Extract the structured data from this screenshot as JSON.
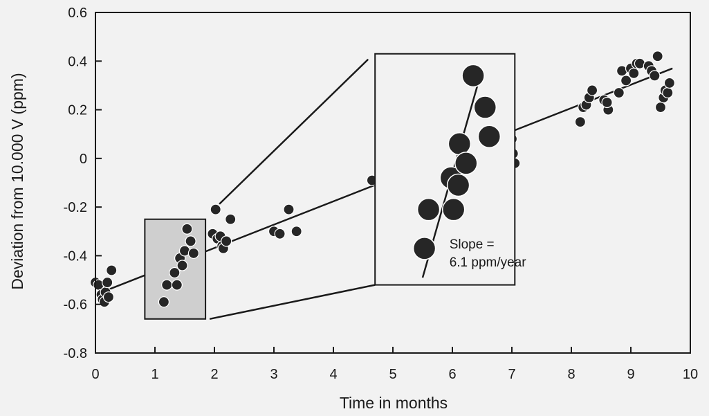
{
  "chart_data": {
    "type": "scatter",
    "xlabel": "Time in months",
    "ylabel": "Deviation from 10.000 V  (ppm)",
    "xlim": [
      0,
      10
    ],
    "ylim": [
      -0.8,
      0.6
    ],
    "x_ticks": [
      "0",
      "1",
      "2",
      "3",
      "4",
      "5",
      "6",
      "7",
      "8",
      "9",
      "10"
    ],
    "y_ticks": [
      "0.6",
      "0.4",
      "0.2",
      "0",
      "-0.2",
      "-0.4",
      "-0.6",
      "-0.8"
    ],
    "y_tick_values": [
      0.6,
      0.4,
      0.2,
      0,
      -0.2,
      -0.4,
      -0.6,
      -0.8
    ],
    "grid": false,
    "main_series": {
      "points": [
        [
          0.0,
          -0.51
        ],
        [
          0.05,
          -0.52
        ],
        [
          0.1,
          -0.56
        ],
        [
          0.12,
          -0.58
        ],
        [
          0.15,
          -0.59
        ],
        [
          0.17,
          -0.55
        ],
        [
          0.2,
          -0.51
        ],
        [
          0.22,
          -0.57
        ],
        [
          0.27,
          -0.46
        ],
        [
          1.97,
          -0.31
        ],
        [
          2.02,
          -0.21
        ],
        [
          2.05,
          -0.33
        ],
        [
          2.1,
          -0.32
        ],
        [
          2.13,
          -0.36
        ],
        [
          2.15,
          -0.37
        ],
        [
          2.2,
          -0.34
        ],
        [
          2.27,
          -0.25
        ],
        [
          3.0,
          -0.3
        ],
        [
          3.1,
          -0.31
        ],
        [
          3.25,
          -0.21
        ],
        [
          3.38,
          -0.3
        ],
        [
          4.65,
          -0.09
        ],
        [
          7.0,
          0.08
        ],
        [
          7.02,
          0.02
        ],
        [
          7.05,
          -0.02
        ],
        [
          8.15,
          0.15
        ],
        [
          8.2,
          0.21
        ],
        [
          8.25,
          0.22
        ],
        [
          8.3,
          0.25
        ],
        [
          8.35,
          0.28
        ],
        [
          8.55,
          0.24
        ],
        [
          8.62,
          0.2
        ],
        [
          8.6,
          0.23
        ],
        [
          8.8,
          0.27
        ],
        [
          8.85,
          0.36
        ],
        [
          8.92,
          0.32
        ],
        [
          9.0,
          0.37
        ],
        [
          9.05,
          0.35
        ],
        [
          9.1,
          0.39
        ],
        [
          9.15,
          0.39
        ],
        [
          9.3,
          0.38
        ],
        [
          9.35,
          0.36
        ],
        [
          9.4,
          0.34
        ],
        [
          9.45,
          0.42
        ],
        [
          9.5,
          0.21
        ],
        [
          9.55,
          0.25
        ],
        [
          9.58,
          0.28
        ],
        [
          9.62,
          0.27
        ],
        [
          9.65,
          0.31
        ]
      ],
      "fit_line": {
        "x": [
          0,
          9.7
        ],
        "y": [
          -0.56,
          0.37
        ]
      }
    },
    "inset_small": {
      "shaded_box": {
        "x": [
          0.83,
          1.85
        ],
        "y": [
          -0.66,
          -0.25
        ]
      },
      "points": [
        [
          1.15,
          -0.59
        ],
        [
          1.2,
          -0.52
        ],
        [
          1.33,
          -0.47
        ],
        [
          1.37,
          -0.52
        ],
        [
          1.42,
          -0.41
        ],
        [
          1.46,
          -0.44
        ],
        [
          1.5,
          -0.38
        ],
        [
          1.54,
          -0.29
        ],
        [
          1.6,
          -0.34
        ],
        [
          1.65,
          -0.39
        ]
      ]
    },
    "inset_zoom": {
      "box": {
        "x": [
          4.7,
          7.05
        ],
        "y": [
          -0.52,
          0.43
        ]
      },
      "points": [
        [
          6.35,
          0.34
        ],
        [
          6.55,
          0.21
        ],
        [
          6.62,
          0.09
        ],
        [
          6.12,
          0.06
        ],
        [
          5.98,
          -0.08
        ],
        [
          6.23,
          -0.02
        ],
        [
          6.1,
          -0.11
        ],
        [
          5.6,
          -0.21
        ],
        [
          6.02,
          -0.21
        ],
        [
          5.53,
          -0.37
        ]
      ],
      "fit_line": {
        "x": [
          5.5,
          6.48
        ],
        "y": [
          -0.49,
          0.35
        ]
      },
      "annotation": [
        "Slope =",
        "6.1 ppm/year"
      ]
    }
  }
}
